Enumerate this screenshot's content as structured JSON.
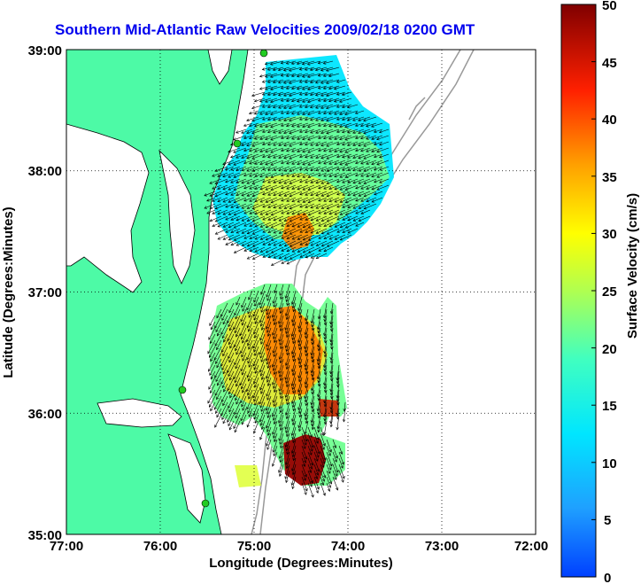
{
  "title": "Southern Mid-Atlantic Raw Velocities 2009/02/18 0200 GMT",
  "axes": {
    "xlabel": "Longitude (Degrees:Minutes)",
    "ylabel": "Latitude (Degrees:Minutes)",
    "x_ticks": [
      "77:00",
      "76:00",
      "75:00",
      "74:00",
      "73:00",
      "72:00"
    ],
    "y_ticks": [
      "39:00",
      "38:00",
      "37:00",
      "36:00",
      "35:00"
    ],
    "x_range": [
      -77,
      -72
    ],
    "y_range": [
      35,
      39
    ],
    "grid": "dotted"
  },
  "colorbar": {
    "label": "Surface Velocity (cm/s)",
    "ticks": [
      "50",
      "45",
      "40",
      "35",
      "30",
      "25",
      "20",
      "15",
      "10",
      "5",
      "0"
    ],
    "range": [
      0,
      50
    ],
    "colormap": "jet"
  },
  "colors": {
    "land": "#4dfaa6",
    "coast_line": "#000000",
    "bathymetry": "#999999",
    "title": "#0000ee",
    "station": "#22cc22"
  }
}
